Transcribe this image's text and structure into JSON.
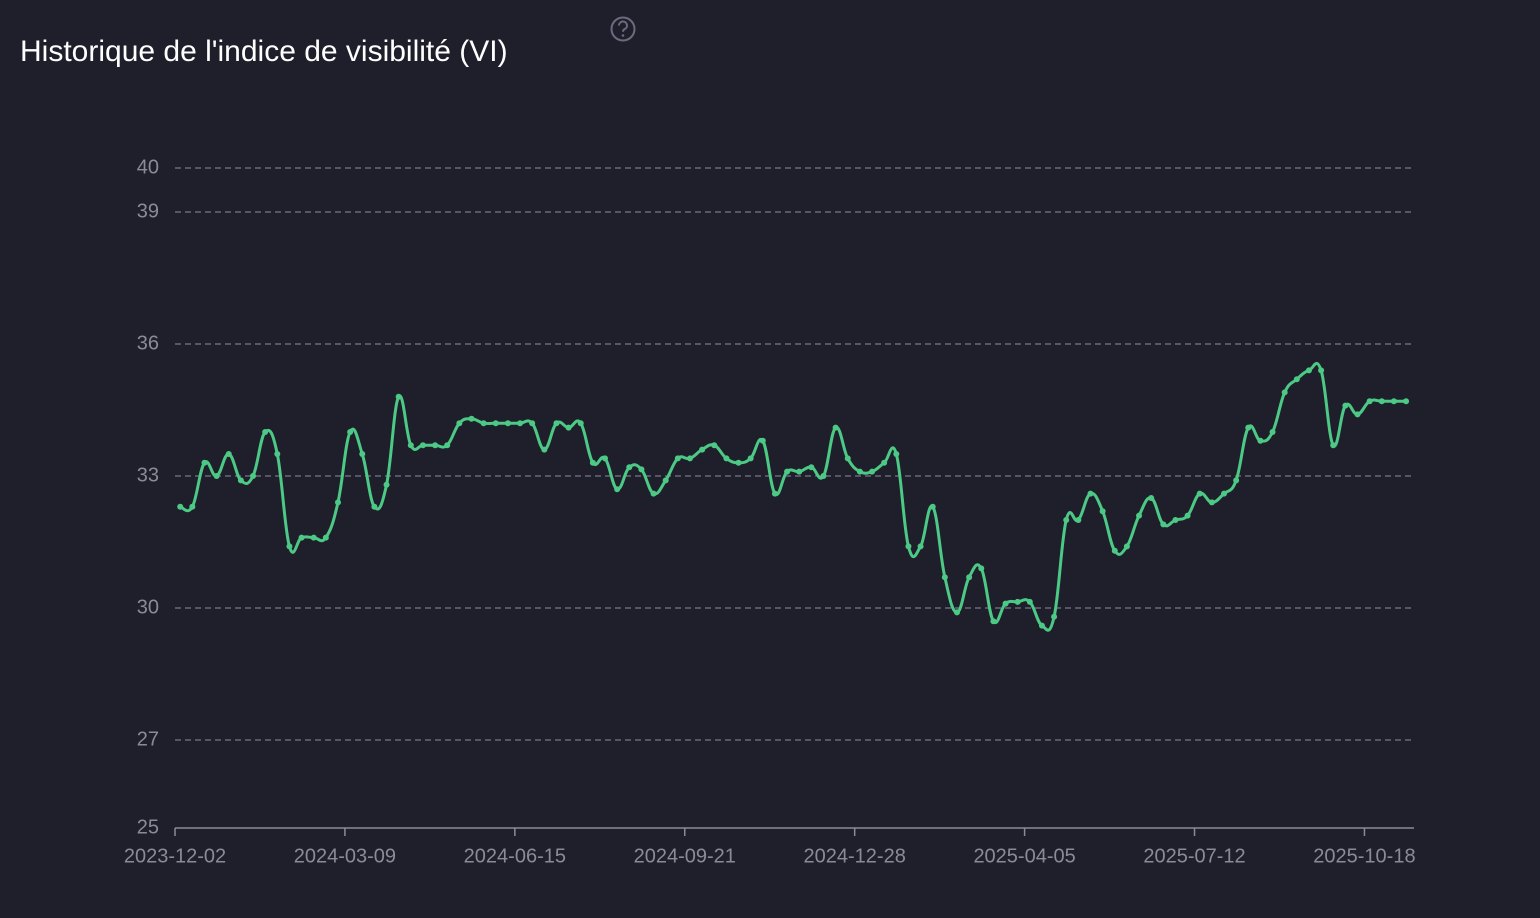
{
  "chart_data": {
    "type": "line",
    "title": "Historique de l'indice de visibilité (VI)",
    "x": [
      "2023-12-05",
      "2023-12-12",
      "2023-12-19",
      "2023-12-26",
      "2024-01-02",
      "2024-01-09",
      "2024-01-16",
      "2024-01-23",
      "2024-01-30",
      "2024-02-06",
      "2024-02-13",
      "2024-02-20",
      "2024-02-27",
      "2024-03-05",
      "2024-03-12",
      "2024-03-19",
      "2024-03-26",
      "2024-04-02",
      "2024-04-09",
      "2024-04-16",
      "2024-04-23",
      "2024-04-30",
      "2024-05-07",
      "2024-05-14",
      "2024-05-21",
      "2024-05-28",
      "2024-06-04",
      "2024-06-11",
      "2024-06-18",
      "2024-06-25",
      "2024-07-02",
      "2024-07-09",
      "2024-07-16",
      "2024-07-23",
      "2024-07-30",
      "2024-08-06",
      "2024-08-13",
      "2024-08-20",
      "2024-08-27",
      "2024-09-03",
      "2024-09-10",
      "2024-09-17",
      "2024-09-24",
      "2024-10-01",
      "2024-10-08",
      "2024-10-15",
      "2024-10-22",
      "2024-10-29",
      "2024-11-05",
      "2024-11-12",
      "2024-11-19",
      "2024-11-26",
      "2024-12-03",
      "2024-12-10",
      "2024-12-17",
      "2024-12-24",
      "2024-12-31",
      "2025-01-07",
      "2025-01-14",
      "2025-01-21",
      "2025-01-28",
      "2025-02-04",
      "2025-02-11",
      "2025-02-18",
      "2025-02-25",
      "2025-03-04",
      "2025-03-11",
      "2025-03-18",
      "2025-03-25",
      "2025-04-01",
      "2025-04-08",
      "2025-04-15",
      "2025-04-22",
      "2025-04-29",
      "2025-05-06",
      "2025-05-13",
      "2025-05-20",
      "2025-05-27",
      "2025-06-03",
      "2025-06-10",
      "2025-06-17",
      "2025-06-24",
      "2025-07-01",
      "2025-07-08",
      "2025-07-15",
      "2025-07-22",
      "2025-07-29",
      "2025-08-05",
      "2025-08-12",
      "2025-08-19",
      "2025-08-26",
      "2025-09-02",
      "2025-09-09",
      "2025-09-16",
      "2025-09-23",
      "2025-09-30",
      "2025-10-07",
      "2025-10-14",
      "2025-10-21",
      "2025-10-28",
      "2025-11-04",
      "2025-11-11"
    ],
    "series": [
      {
        "color": "#4cc985",
        "values": [
          32.3,
          32.3,
          33.3,
          33.0,
          33.5,
          32.9,
          33.0,
          34.0,
          33.5,
          31.4,
          31.6,
          31.6,
          31.6,
          32.4,
          34.0,
          33.5,
          32.3,
          32.8,
          34.8,
          33.7,
          33.7,
          33.7,
          33.7,
          34.2,
          34.3,
          34.2,
          34.2,
          34.2,
          34.2,
          34.2,
          33.6,
          34.2,
          34.1,
          34.2,
          33.3,
          33.4,
          32.7,
          33.2,
          33.15,
          32.6,
          32.9,
          33.4,
          33.4,
          33.6,
          33.7,
          33.4,
          33.3,
          33.4,
          33.8,
          32.6,
          33.1,
          33.1,
          33.2,
          33.0,
          34.1,
          33.4,
          33.1,
          33.1,
          33.3,
          33.5,
          31.4,
          31.4,
          32.3,
          30.7,
          29.9,
          30.7,
          30.9,
          29.7,
          30.1,
          30.14,
          30.14,
          29.6,
          29.8,
          32.0,
          32.0,
          32.6,
          32.2,
          31.3,
          31.4,
          32.1,
          32.5,
          31.9,
          32.0,
          32.1,
          32.6,
          32.4,
          32.6,
          32.9,
          34.1,
          33.8,
          34.0,
          34.9,
          35.2,
          35.4,
          35.4,
          33.7,
          34.6,
          34.4,
          34.7,
          34.7,
          34.7,
          34.7
        ]
      }
    ],
    "xlim": [
      "2023-12-02",
      "2025-11-15"
    ],
    "xticks": [
      "2023-12-02",
      "2024-03-09",
      "2024-06-15",
      "2024-09-21",
      "2024-12-28",
      "2025-04-05",
      "2025-07-12",
      "2025-10-18"
    ],
    "ylim": [
      25,
      40
    ],
    "yticks": [
      25,
      27,
      30,
      33,
      36,
      39,
      40
    ],
    "grid": true
  }
}
